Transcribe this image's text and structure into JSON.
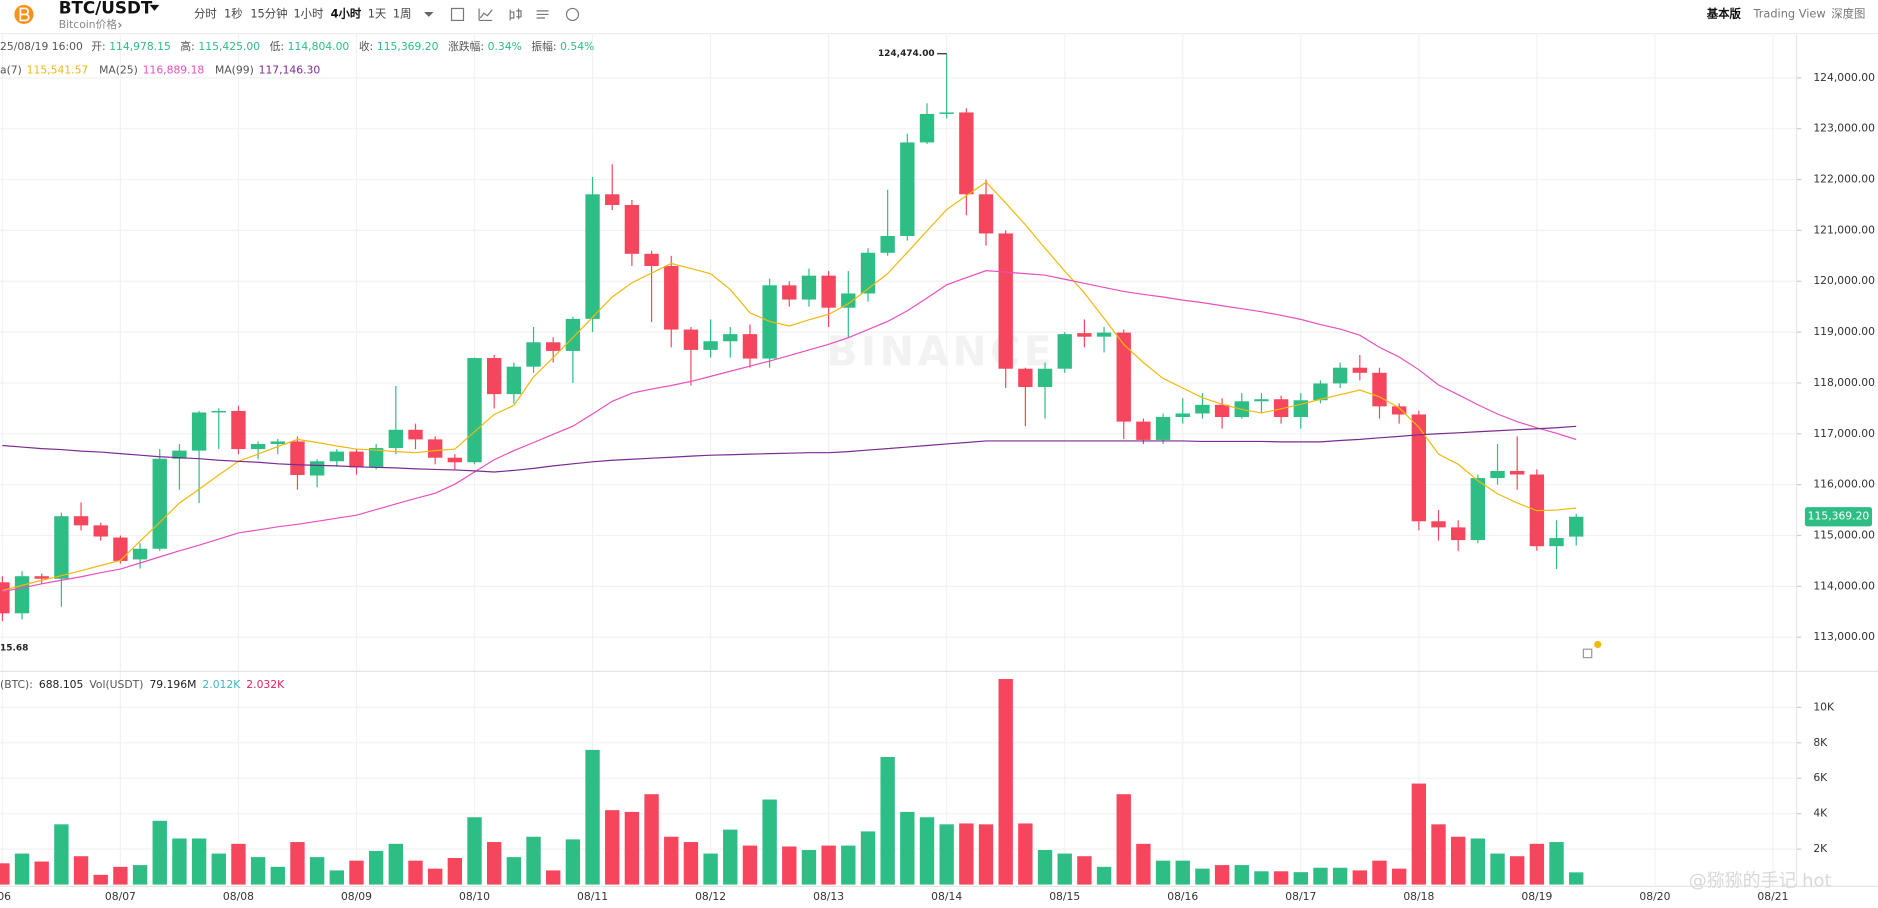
{
  "header": {
    "symbol": "BTC/USDT",
    "subtitle": "Bitcoin价格",
    "intervals": [
      "分时",
      "1秒",
      "15分钟",
      "1小时",
      "4小时",
      "1天",
      "1周"
    ],
    "views": [
      "基本版",
      "Trading View",
      "深度图"
    ]
  },
  "ohlc_info": {
    "time": "25/08/19 16:00",
    "items": [
      {
        "label": "开:",
        "value": "114,978.15"
      },
      {
        "label": "高:",
        "value": "115,425.00"
      },
      {
        "label": "低:",
        "value": "114,804.00"
      },
      {
        "label": "收:",
        "value": "115,369.20"
      },
      {
        "label": "涨跌幅:",
        "value": "0.34%"
      },
      {
        "label": "振幅:",
        "value": "0.54%"
      }
    ]
  },
  "chart_data": {
    "type": "candlestick",
    "up_color": "#2ebd85",
    "down_color": "#f6465d",
    "grid": true,
    "watermark": "BINANCE",
    "high_label": "124,474.00",
    "low_label": "15.68",
    "price_tag": "115,369.20",
    "credit": "@猕猕的手记 hot",
    "xlim": [
      -0.12,
      91.2
    ],
    "xticks": [
      {
        "value": 0,
        "label": "/06"
      },
      {
        "value": 6,
        "label": "08/07"
      },
      {
        "value": 12,
        "label": "08/08"
      },
      {
        "value": 18,
        "label": "08/09"
      },
      {
        "value": 24,
        "label": "08/10"
      },
      {
        "value": 30,
        "label": "08/11"
      },
      {
        "value": 36,
        "label": "08/12"
      },
      {
        "value": 42,
        "label": "08/13"
      },
      {
        "value": 48,
        "label": "08/14"
      },
      {
        "value": 54,
        "label": "08/15"
      },
      {
        "value": 60,
        "label": "08/16"
      },
      {
        "value": 66,
        "label": "08/17"
      },
      {
        "value": 72,
        "label": "08/18"
      },
      {
        "value": 78,
        "label": "08/19"
      },
      {
        "value": 84,
        "label": "08/20"
      },
      {
        "value": 90,
        "label": "08/21"
      }
    ],
    "ylim": [
      112340,
      124870
    ],
    "yticks": [
      {
        "value": 113000,
        "label": "113,000.00"
      },
      {
        "value": 114000,
        "label": "114,000.00"
      },
      {
        "value": 115000,
        "label": "115,000.00"
      },
      {
        "value": 116000,
        "label": "116,000.00"
      },
      {
        "value": 117000,
        "label": "117,000.00"
      },
      {
        "value": 118000,
        "label": "118,000.00"
      },
      {
        "value": 119000,
        "label": "119,000.00"
      },
      {
        "value": 120000,
        "label": "120,000.00"
      },
      {
        "value": 121000,
        "label": "121,000.00"
      },
      {
        "value": 122000,
        "label": "122,000.00"
      },
      {
        "value": 123000,
        "label": "123,000.00"
      },
      {
        "value": 124000,
        "label": "124,000.00"
      }
    ],
    "open": [
      114080,
      113470,
      114200,
      114150,
      115380,
      115200,
      114960,
      114530,
      114740,
      116510,
      116670,
      117420,
      117450,
      116700,
      116800,
      116850,
      116180,
      116460,
      116650,
      116340,
      116720,
      117080,
      116890,
      116530,
      116440,
      118490,
      117780,
      118320,
      118800,
      118630,
      119260,
      121710,
      121500,
      120540,
      120300,
      119050,
      118650,
      118820,
      118960,
      118480,
      119920,
      119640,
      120110,
      119480,
      119760,
      120560,
      120890,
      122730,
      123290,
      123320,
      121710,
      120940,
      118280,
      117920,
      118280,
      118980,
      118910,
      118990,
      117240,
      116880,
      117330,
      117400,
      117570,
      117330,
      117640,
      117680,
      117330,
      117660,
      117990,
      118300,
      118200,
      117540,
      117380,
      115280,
      115160,
      114910,
      116130,
      116270,
      116200,
      114790,
      114978.15
    ],
    "high": [
      114200,
      114300,
      114250,
      115450,
      115650,
      115250,
      115000,
      114850,
      116700,
      116800,
      117450,
      117500,
      117550,
      116850,
      116900,
      116950,
      116500,
      116700,
      116700,
      116800,
      117940,
      117200,
      116950,
      116600,
      118500,
      118550,
      118400,
      119100,
      118900,
      119300,
      122050,
      122300,
      121600,
      120600,
      120500,
      119100,
      119250,
      119100,
      119150,
      120050,
      120000,
      120250,
      120200,
      120200,
      120650,
      121800,
      122900,
      123500,
      124474,
      123400,
      122000,
      121000,
      118300,
      118400,
      119000,
      119250,
      119100,
      119050,
      117300,
      117400,
      117700,
      117800,
      117700,
      117800,
      117800,
      117750,
      117800,
      118050,
      118400,
      118550,
      118300,
      117600,
      117450,
      115500,
      115300,
      116200,
      116800,
      116950,
      116300,
      115300,
      115425
    ],
    "low": [
      113315.68,
      113350,
      114050,
      113600,
      115100,
      114900,
      114450,
      114350,
      114700,
      115900,
      115640,
      116700,
      116600,
      116500,
      116600,
      115900,
      115950,
      116350,
      116200,
      116300,
      116600,
      116700,
      116400,
      116300,
      116400,
      117500,
      117600,
      118200,
      118400,
      118000,
      119000,
      121400,
      120300,
      119200,
      118700,
      117950,
      118500,
      118500,
      118300,
      118300,
      119500,
      119500,
      119100,
      118900,
      119600,
      120500,
      120800,
      122700,
      123200,
      121300,
      120700,
      117900,
      117150,
      117300,
      118200,
      118700,
      118600,
      116900,
      116800,
      116800,
      117200,
      117300,
      117100,
      117300,
      117400,
      117200,
      117100,
      117600,
      117900,
      118050,
      117300,
      117200,
      115100,
      114900,
      114700,
      114850,
      116000,
      115900,
      114700,
      114340,
      114804
    ],
    "close": [
      113470,
      114200,
      114150,
      115380,
      115200,
      114980,
      114500,
      114740,
      116510,
      116670,
      117420,
      117450,
      116700,
      116800,
      116850,
      116190,
      116460,
      116650,
      116340,
      116720,
      117080,
      116890,
      116530,
      116440,
      118490,
      117780,
      118320,
      118800,
      118630,
      119260,
      121710,
      121500,
      120540,
      120300,
      119050,
      118650,
      118820,
      118960,
      118480,
      119920,
      119640,
      120110,
      119480,
      119760,
      120560,
      120890,
      122730,
      123290,
      123320,
      121710,
      120940,
      118280,
      117920,
      118280,
      118960,
      118910,
      118990,
      117240,
      116880,
      117330,
      117400,
      117570,
      117330,
      117640,
      117680,
      117330,
      117660,
      117990,
      118300,
      118200,
      117540,
      117380,
      115280,
      115160,
      114910,
      116130,
      116270,
      116200,
      114790,
      114950,
      115369.2
    ],
    "ma_lines": [
      {
        "name": "a(7)",
        "color": "#f0b90b",
        "value_label": "115,541.57",
        "values": [
          113920,
          114020,
          114120,
          114210,
          114310,
          114410,
          114510,
          114890,
          115260,
          115640,
          115910,
          116190,
          116460,
          116600,
          116750,
          116890,
          116830,
          116760,
          116700,
          116680,
          116650,
          116630,
          116670,
          116700,
          117040,
          117380,
          117560,
          118120,
          118500,
          118890,
          119290,
          119690,
          119970,
          120160,
          120350,
          120250,
          120150,
          119840,
          119380,
          119210,
          119120,
          119240,
          119350,
          119560,
          119850,
          120150,
          120570,
          120990,
          121410,
          121680,
          121950,
          121540,
          121110,
          120650,
          120200,
          119770,
          119270,
          118760,
          118400,
          118090,
          117900,
          117710,
          117580,
          117480,
          117410,
          117490,
          117580,
          117680,
          117770,
          117860,
          117730,
          117510,
          117130,
          116600,
          116400,
          116080,
          115820,
          115640,
          115490,
          115500,
          115541.57
        ]
      },
      {
        "name": "MA(25)",
        "color": "#e84fc1",
        "value_label": "116,889.18",
        "values": [
          113900,
          113970,
          114050,
          114120,
          114190,
          114270,
          114340,
          114460,
          114580,
          114700,
          114810,
          114930,
          115050,
          115110,
          115170,
          115220,
          115280,
          115340,
          115400,
          115510,
          115620,
          115730,
          115830,
          116010,
          116250,
          116490,
          116670,
          116830,
          116990,
          117150,
          117390,
          117640,
          117800,
          117880,
          117950,
          118030,
          118130,
          118230,
          118330,
          118430,
          118540,
          118650,
          118760,
          118890,
          119050,
          119210,
          119420,
          119670,
          119930,
          120070,
          120210,
          120180,
          120150,
          120120,
          120040,
          119960,
          119880,
          119800,
          119740,
          119690,
          119630,
          119580,
          119520,
          119460,
          119400,
          119330,
          119250,
          119150,
          119060,
          118940,
          118700,
          118510,
          118260,
          117960,
          117770,
          117570,
          117390,
          117240,
          117120,
          117010,
          116889.18
        ]
      },
      {
        "name": "MA(99)",
        "color": "#7b2b8f",
        "value_label": "117,146.30",
        "values": [
          116770,
          116740,
          116710,
          116690,
          116660,
          116640,
          116610,
          116580,
          116550,
          116530,
          116510,
          116480,
          116460,
          116440,
          116410,
          116390,
          116380,
          116370,
          116350,
          116340,
          116330,
          116310,
          116300,
          116290,
          116270,
          116250,
          116280,
          116320,
          116370,
          116410,
          116450,
          116480,
          116500,
          116520,
          116540,
          116560,
          116580,
          116590,
          116600,
          116610,
          116620,
          116630,
          116630,
          116650,
          116680,
          116710,
          116740,
          116770,
          116800,
          116830,
          116860,
          116860,
          116860,
          116860,
          116860,
          116860,
          116860,
          116860,
          116860,
          116860,
          116860,
          116850,
          116850,
          116850,
          116850,
          116840,
          116840,
          116840,
          116870,
          116890,
          116920,
          116950,
          116980,
          117000,
          117020,
          117040,
          117060,
          117080,
          117100,
          117120,
          117146.3
        ]
      }
    ],
    "volume": {
      "ylim": [
        0,
        11.93
      ],
      "yticks": [
        {
          "value": 2,
          "label": "2K"
        },
        {
          "value": 4,
          "label": "4K"
        },
        {
          "value": 6,
          "label": "6K"
        },
        {
          "value": 8,
          "label": "8K"
        },
        {
          "value": 10,
          "label": "10K"
        }
      ],
      "legend": [
        {
          "text": "(BTC):",
          "color": "#555"
        },
        {
          "text": "688.105",
          "color": "#222"
        },
        {
          "text": "Vol(USDT)",
          "color": "#555"
        },
        {
          "text": "79.196M",
          "color": "#222"
        },
        {
          "text": "2.012K",
          "color": "#3db5cc"
        },
        {
          "text": "2.032K",
          "color": "#e0245e"
        }
      ],
      "values": [
        1.2,
        1.75,
        1.3,
        3.4,
        1.6,
        0.55,
        1.0,
        1.1,
        3.6,
        2.6,
        2.6,
        1.75,
        2.3,
        1.55,
        1.0,
        2.4,
        1.55,
        0.8,
        1.35,
        1.9,
        2.3,
        1.35,
        0.9,
        1.5,
        3.8,
        2.4,
        1.55,
        2.7,
        0.8,
        2.55,
        7.6,
        4.2,
        4.1,
        5.1,
        2.7,
        2.4,
        1.75,
        3.1,
        2.2,
        4.8,
        2.15,
        1.95,
        2.2,
        2.2,
        3.0,
        7.2,
        4.1,
        3.8,
        3.4,
        3.45,
        3.4,
        11.6,
        3.45,
        1.95,
        1.75,
        1.6,
        1.0,
        5.1,
        2.3,
        1.35,
        1.35,
        0.9,
        1.1,
        1.1,
        0.75,
        0.75,
        0.7,
        0.95,
        0.95,
        0.8,
        1.35,
        0.9,
        5.7,
        3.4,
        2.7,
        2.6,
        1.75,
        1.6,
        2.3,
        2.4,
        0.69
      ]
    }
  }
}
